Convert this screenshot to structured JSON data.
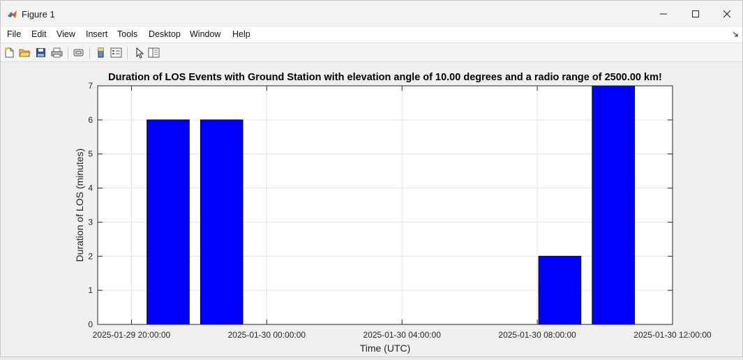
{
  "window": {
    "title": "Figure 1"
  },
  "menu": {
    "items": [
      "File",
      "Edit",
      "View",
      "Insert",
      "Tools",
      "Desktop",
      "Window",
      "Help"
    ]
  },
  "toolbar": {
    "icons": [
      "new-figure-icon",
      "open-file-icon",
      "save-icon",
      "print-icon",
      "link-plot-icon",
      "insert-colorbar-icon",
      "insert-legend-icon",
      "edit-plot-cursor-icon",
      "property-inspector-icon"
    ]
  },
  "colors": {
    "bar": "#0000ff",
    "axes_background": "#ffffff",
    "figure_background": "#f0f0f0"
  },
  "chart_data": {
    "type": "bar",
    "title": "Duration of LOS Events with Ground Station with elevation angle of  10.00 degrees and a radio range of  2500.00 km!",
    "xlabel": "Time (UTC)",
    "ylabel": "Duration of LOS (minutes)",
    "ylim": [
      0,
      7
    ],
    "yticks": [
      0,
      1,
      2,
      3,
      4,
      5,
      6,
      7
    ],
    "xlim": [
      "2025-01-29 19:00:00",
      "2025-01-30 12:00:00"
    ],
    "xticks": [
      "2025-01-29 20:00:00",
      "2025-01-30 00:00:00",
      "2025-01-30 04:00:00",
      "2025-01-30 08:00:00",
      "2025-01-30 12:00:00"
    ],
    "grid": true,
    "bars": [
      {
        "x": "2025-01-29 21:05:00",
        "value": 6
      },
      {
        "x": "2025-01-29 22:40:00",
        "value": 6
      },
      {
        "x": "2025-01-30 08:40:00",
        "value": 2
      },
      {
        "x": "2025-01-30 10:15:00",
        "value": 7
      }
    ]
  }
}
